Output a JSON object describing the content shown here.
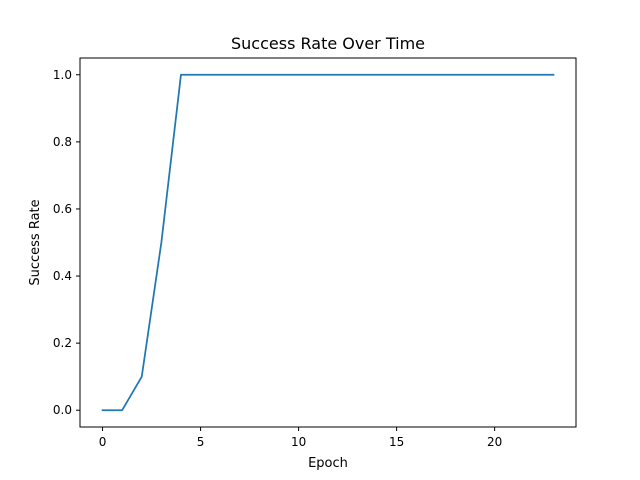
{
  "chart_data": {
    "type": "line",
    "title": "Success Rate Over Time",
    "xlabel": "Epoch",
    "ylabel": "Success Rate",
    "xlim": [
      -1.15,
      24.15
    ],
    "ylim": [
      -0.05,
      1.05
    ],
    "xticks": [
      0,
      5,
      10,
      15,
      20
    ],
    "xtick_labels": [
      "0",
      "5",
      "10",
      "15",
      "20"
    ],
    "yticks": [
      0.0,
      0.2,
      0.4,
      0.6,
      0.8,
      1.0
    ],
    "ytick_labels": [
      "0.0",
      "0.2",
      "0.4",
      "0.6",
      "0.8",
      "1.0"
    ],
    "grid": false,
    "series": [
      {
        "color": "#1f77b4",
        "x": [
          0,
          1,
          2,
          3,
          4,
          5,
          6,
          7,
          8,
          9,
          10,
          11,
          12,
          13,
          14,
          15,
          16,
          17,
          18,
          19,
          20,
          21,
          22,
          23
        ],
        "y": [
          0.0,
          0.0,
          0.1,
          0.5,
          1.0,
          1.0,
          1.0,
          1.0,
          1.0,
          1.0,
          1.0,
          1.0,
          1.0,
          1.0,
          1.0,
          1.0,
          1.0,
          1.0,
          1.0,
          1.0,
          1.0,
          1.0,
          1.0,
          1.0
        ]
      }
    ]
  }
}
